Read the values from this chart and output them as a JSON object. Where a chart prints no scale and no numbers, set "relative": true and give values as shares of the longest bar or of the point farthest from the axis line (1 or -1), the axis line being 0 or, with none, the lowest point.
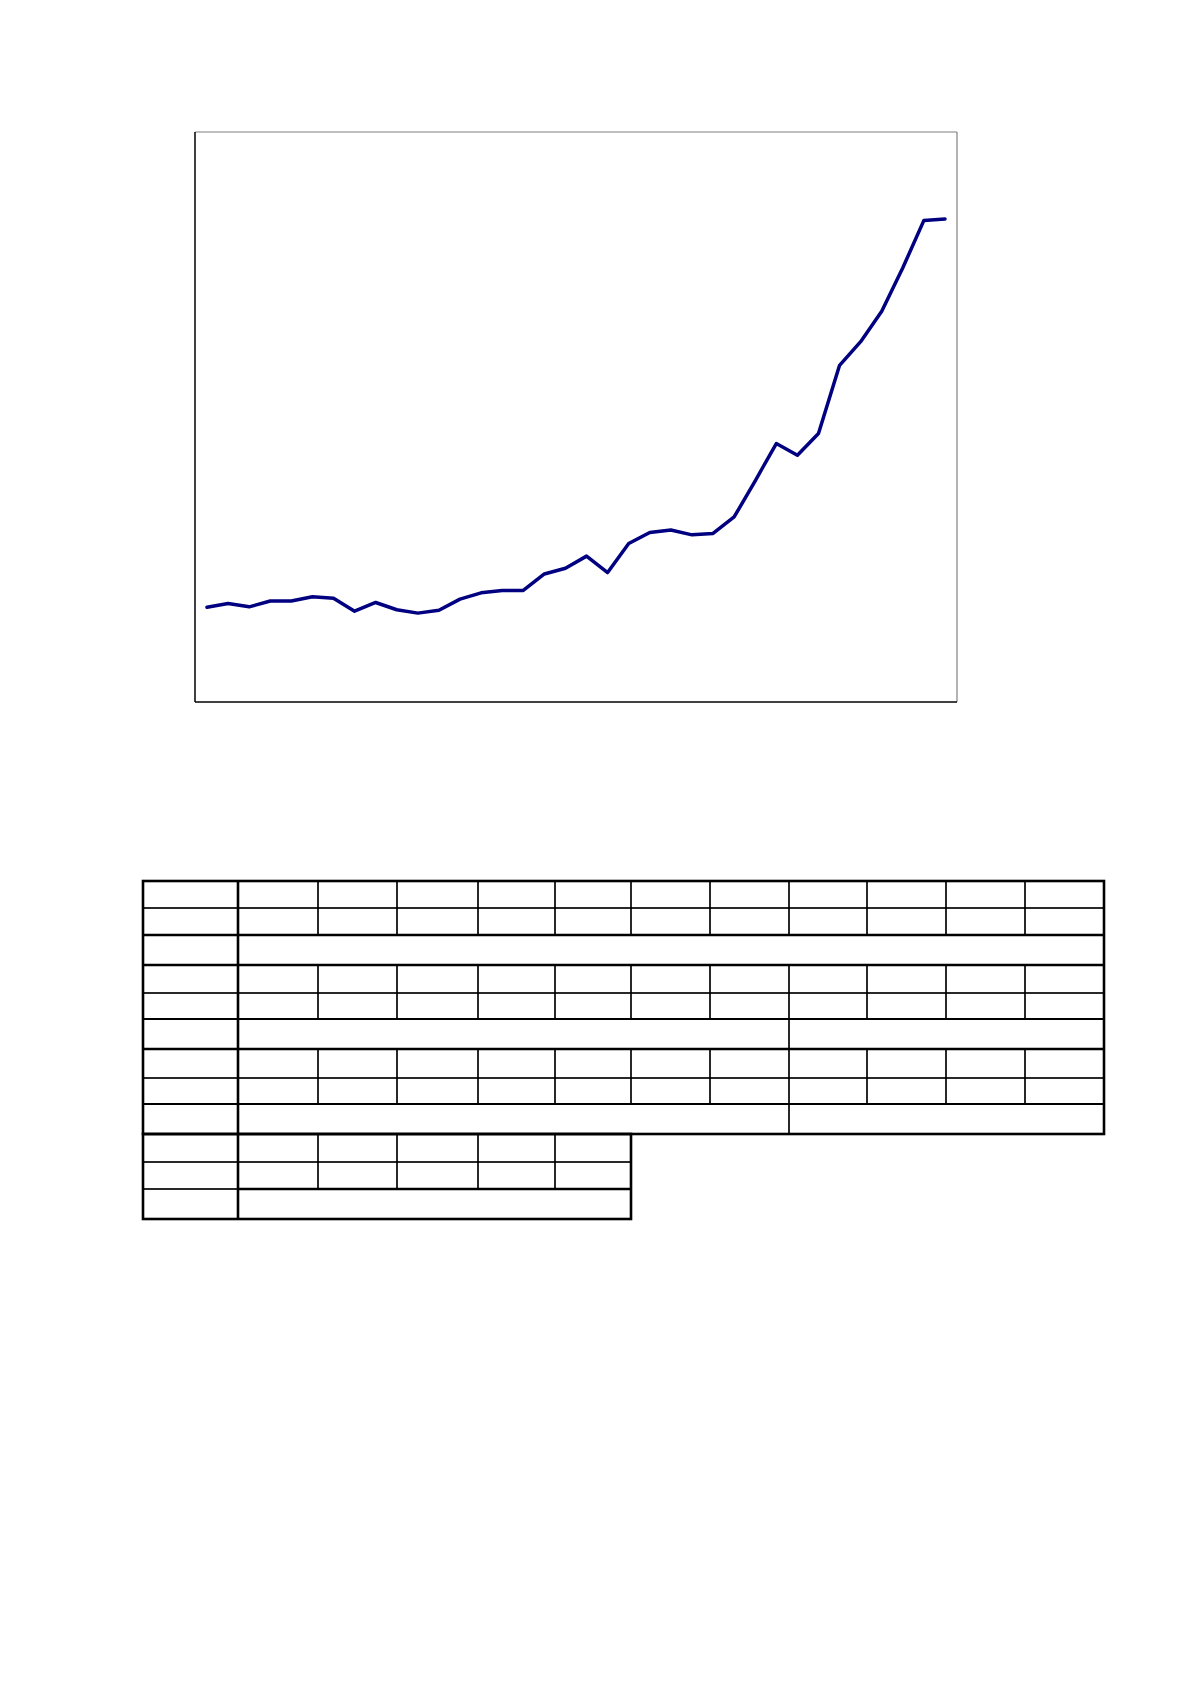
{
  "chart_data": {
    "type": "line",
    "relative": true,
    "color": "#000080",
    "categories": [
      null,
      null,
      null,
      null,
      null,
      null,
      null,
      null,
      null,
      null,
      null,
      null,
      null,
      null,
      null,
      null,
      null,
      null,
      null,
      null,
      null,
      null,
      null,
      null,
      null,
      null,
      null,
      null,
      null,
      null,
      null,
      null,
      null,
      null,
      null,
      null
    ],
    "values": [
      0.196,
      0.204,
      0.197,
      0.209,
      0.209,
      0.218,
      0.215,
      0.188,
      0.206,
      0.191,
      0.184,
      0.19,
      0.213,
      0.226,
      0.231,
      0.231,
      0.265,
      0.277,
      0.302,
      0.268,
      0.328,
      0.351,
      0.356,
      0.346,
      0.349,
      0.383,
      0.458,
      0.535,
      0.511,
      0.556,
      0.697,
      0.746,
      0.809,
      0.899,
      0.997,
      1
    ]
  }
}
